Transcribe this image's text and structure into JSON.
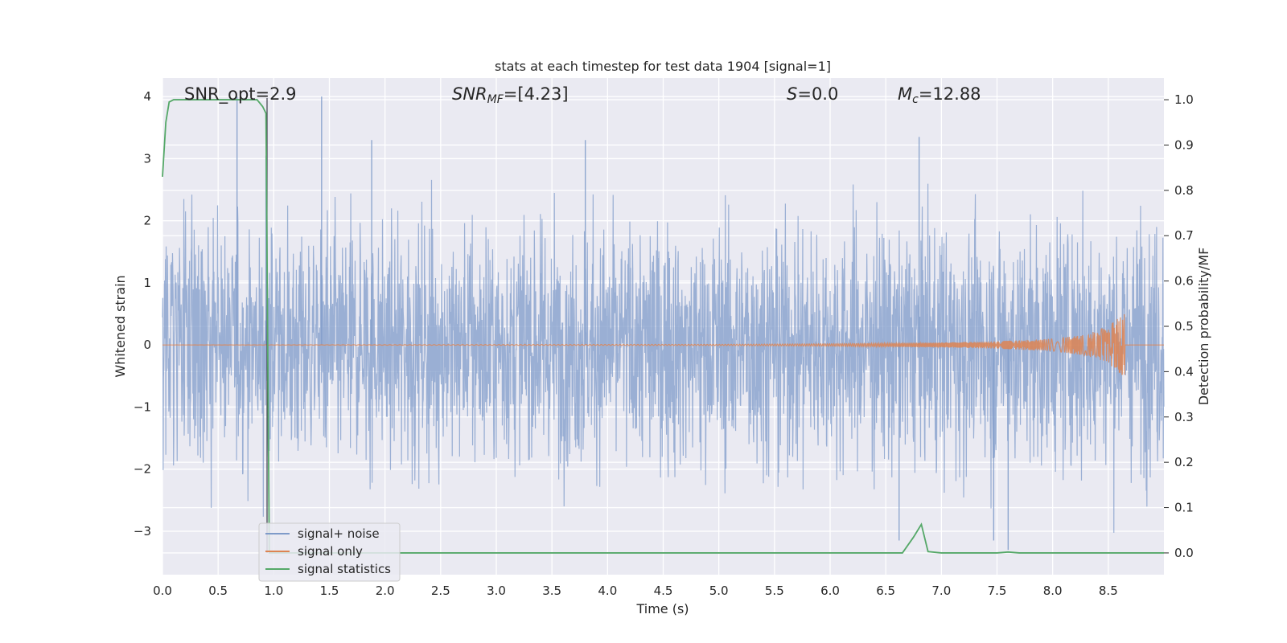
{
  "chart_data": {
    "type": "line",
    "title": "stats at each timestep for test data 1904 [signal=1]",
    "xlabel": "Time (s)",
    "ylabel": "Whitened strain",
    "ylabel_right": "Detection probability/MF",
    "xlim": [
      0.0,
      9.0
    ],
    "ylim": [
      -3.7,
      4.3
    ],
    "ylim_right": [
      -0.048,
      1.048
    ],
    "x_ticks": [
      "0.0",
      "0.5",
      "1.0",
      "1.5",
      "2.0",
      "2.5",
      "3.0",
      "3.5",
      "4.0",
      "4.5",
      "5.0",
      "5.5",
      "6.0",
      "6.5",
      "7.0",
      "7.5",
      "8.0",
      "8.5"
    ],
    "y_ticks": [
      "−3",
      "−2",
      "−1",
      "0",
      "1",
      "2",
      "3",
      "4"
    ],
    "y_ticks_right": [
      "0.0",
      "0.1",
      "0.2",
      "0.3",
      "0.4",
      "0.5",
      "0.6",
      "0.7",
      "0.8",
      "0.9",
      "1.0"
    ],
    "grid": true,
    "legend_position": "lower-left",
    "annotations": {
      "snr_opt": "SNR_opt=2.9",
      "snr_mf_main": "SNR",
      "snr_mf_sub": "MF",
      "snr_mf_value": "=[4.23]",
      "s_main": "S",
      "s_value": "=0.0",
      "mc_main": "M",
      "mc_sub": "c",
      "mc_value": "=12.88"
    },
    "series": [
      {
        "name": "signal+ noise",
        "color": "#7f9bc9",
        "description_points": "gaussian-like whitened noise, amplitude ~N(0,1), peaks near 4.0 at t=0.67 and t=1.43, min near -3.3 at t=7.6"
      },
      {
        "name": "signal only",
        "color": "#dd8452",
        "x": [
          0.0,
          5.0,
          6.0,
          7.0,
          7.5,
          8.0,
          8.3,
          8.5,
          8.6,
          8.65
        ],
        "y_envelope": [
          0.0,
          0.01,
          0.02,
          0.04,
          0.06,
          0.1,
          0.17,
          0.3,
          0.45,
          0.52
        ]
      },
      {
        "name": "signal statistics",
        "color": "#55a868",
        "axis": "right",
        "x": [
          0.0,
          0.03,
          0.06,
          0.1,
          0.2,
          0.5,
          0.85,
          0.9,
          0.93,
          0.96,
          1.0,
          1.5,
          2.0,
          3.0,
          4.0,
          5.0,
          6.0,
          6.65,
          6.75,
          6.82,
          6.88,
          7.0,
          7.5,
          7.6,
          7.7,
          8.0,
          9.0
        ],
        "y": [
          0.83,
          0.95,
          0.995,
          1.0,
          1.0,
          1.0,
          1.0,
          0.985,
          0.97,
          0.0,
          0.0,
          0.0,
          0.0,
          0.0,
          0.0,
          0.0,
          0.0,
          0.0,
          0.035,
          0.063,
          0.003,
          0.0,
          0.0,
          0.002,
          0.0,
          0.0,
          0.0
        ]
      }
    ]
  }
}
